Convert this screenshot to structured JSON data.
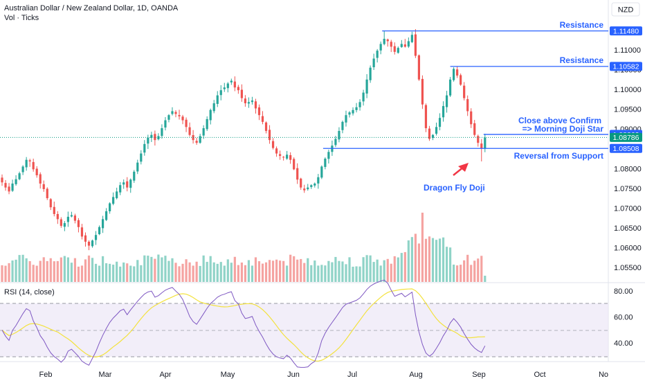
{
  "header": {
    "title": "Australian Dollar / New Zealand Dollar, 1D, OANDA",
    "volume_label": "Vol · Ticks",
    "currency": "NZD"
  },
  "rsi": {
    "label": "RSI (14, close)",
    "ticks": [
      "80.00",
      "60.00",
      "40.00"
    ]
  },
  "colors": {
    "up": "#26a69a",
    "down": "#ef5350",
    "vol_up": "#8fd3c7",
    "vol_down": "#f5a3a1",
    "lines": "#2962ff",
    "rsi_line": "#7e57c2",
    "rsi_ma": "#f3e23d",
    "last_price": "#089981"
  },
  "chart_data": {
    "type": "candlestick",
    "y_ticks": [
      "1.11000",
      "1.10500",
      "1.10000",
      "1.09500",
      "1.09000",
      "1.08500",
      "1.08000",
      "1.07500",
      "1.07000",
      "1.06500",
      "1.06000",
      "1.05500"
    ],
    "x_labels": [
      "Feb",
      "Mar",
      "Apr",
      "May",
      "Jun",
      "Jul",
      "Aug",
      "Sep",
      "Oct",
      "No"
    ],
    "price_tags": [
      {
        "value": "1.11480",
        "color": "#2962ff"
      },
      {
        "value": "1.10582",
        "color": "#2962ff"
      },
      {
        "value": "1.08862",
        "color": "#2962ff"
      },
      {
        "value": "1.08786",
        "color": "#089981"
      },
      {
        "value": "1.08508",
        "color": "#2962ff"
      }
    ],
    "levels": [
      {
        "price": 1.1148,
        "from": "Jul 17",
        "to": "end"
      },
      {
        "price": 1.10582,
        "from": "Aug 12",
        "to": "end"
      },
      {
        "price": 1.08862,
        "from": "Aug 28",
        "to": "end"
      },
      {
        "price": 1.08508,
        "from": "Jun 26",
        "to": "end"
      }
    ],
    "annotations": {
      "resistance_1": "Resistance",
      "resistance_2": "Resistance",
      "confirm_1": "Close above Confirm",
      "confirm_2": "=> Morning Doji Star",
      "support": "Reversal from Support",
      "doji": "Dragon Fly Doji"
    },
    "closes": [
      1.0765,
      1.0752,
      1.0742,
      1.0762,
      1.0773,
      1.0788,
      1.0805,
      1.0822,
      1.0818,
      1.0798,
      1.0783,
      1.0762,
      1.0748,
      1.0725,
      1.0702,
      1.0685,
      1.0672,
      1.0655,
      1.0662,
      1.0678,
      1.0682,
      1.0668,
      1.0652,
      1.0628,
      1.0615,
      1.0605,
      1.0618,
      1.0632,
      1.0652,
      1.0672,
      1.0692,
      1.0712,
      1.0728,
      1.0742,
      1.0758,
      1.0765,
      1.0752,
      1.0772,
      1.0792,
      1.0815,
      1.0838,
      1.0862,
      1.0878,
      1.0885,
      1.0872,
      1.0882,
      1.0902,
      1.0922,
      1.0935,
      1.0945,
      1.0938,
      1.0932,
      1.0922,
      1.0905,
      1.0885,
      1.0872,
      1.0865,
      1.0882,
      1.0902,
      1.0925,
      1.0948,
      1.0965,
      1.0985,
      1.0998,
      1.1005,
      1.1015,
      1.1022,
      1.1005,
      1.0998,
      1.0978,
      1.0965,
      1.0968,
      1.0972,
      1.0952,
      1.0935,
      1.0918,
      1.0895,
      1.0872,
      1.0852,
      1.0838,
      1.0832,
      1.0828,
      1.0835,
      1.0822,
      1.0798,
      1.0772,
      1.0752,
      1.0745,
      1.0752,
      1.0758,
      1.0762,
      1.0778,
      1.0805,
      1.0825,
      1.0842,
      1.0858,
      1.0875,
      1.0895,
      1.0918,
      1.0935,
      1.0942,
      1.0948,
      1.0955,
      1.0968,
      1.0992,
      1.1025,
      1.1055,
      1.1078,
      1.1098,
      1.1115,
      1.1128,
      1.1122,
      1.1108,
      1.1095,
      1.1105,
      1.1115,
      1.1108,
      1.1122,
      1.1138,
      1.1085,
      1.1025,
      1.0962,
      1.0902,
      1.0875,
      1.0885,
      1.0905,
      1.0928,
      1.0958,
      1.0985,
      1.1025,
      1.1052,
      1.1035,
      1.1012,
      1.0978,
      1.0945,
      1.0912,
      1.0885,
      1.0865,
      1.0851,
      1.0878
    ],
    "x_range": [
      "Jan 2024",
      "Nov 2024"
    ],
    "y_range": [
      1.0532,
      1.1172
    ],
    "rsi_range": [
      27,
      87
    ]
  }
}
